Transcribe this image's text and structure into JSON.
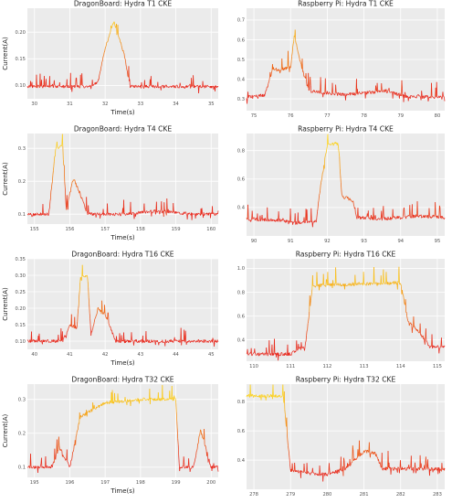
{
  "chart_data": [
    {
      "type": "line",
      "title": "DragonBoard: Hydra T1 CKE",
      "xlabel": "Time(s)",
      "ylabel": "Current(A)",
      "xlim": [
        29.8,
        35.2
      ],
      "ylim": [
        0.075,
        0.245
      ],
      "xticks": [
        30,
        31,
        32,
        33,
        34,
        35
      ],
      "yticks": [
        0.1,
        0.15,
        0.2
      ],
      "grid": true,
      "legend": "none",
      "series": [
        {
          "x": [
            29.8,
            31.6,
            31.8,
            32.0,
            32.25,
            32.4,
            32.55,
            32.7,
            35.2
          ],
          "y": [
            0.098,
            0.098,
            0.107,
            0.17,
            0.22,
            0.19,
            0.155,
            0.098,
            0.098
          ]
        }
      ]
    },
    {
      "type": "line",
      "title": "Raspberry Pi: Hydra T1 CKE",
      "xlabel": "",
      "ylabel": "",
      "xlim": [
        74.8,
        80.2
      ],
      "ylim": [
        0.24,
        0.76
      ],
      "xticks": [
        75,
        76,
        77,
        78,
        79,
        80
      ],
      "yticks": [
        0.3,
        0.4,
        0.5,
        0.6,
        0.7
      ],
      "grid": true,
      "legend": "none",
      "series": [
        {
          "x": [
            74.8,
            75.3,
            75.5,
            75.7,
            76.0,
            76.1,
            76.3,
            76.5,
            77.5,
            78.0,
            78.6,
            79.2,
            80.2
          ],
          "y": [
            0.31,
            0.32,
            0.44,
            0.45,
            0.46,
            0.62,
            0.46,
            0.34,
            0.32,
            0.33,
            0.34,
            0.31,
            0.31
          ]
        }
      ]
    },
    {
      "type": "line",
      "title": "DragonBoard: Hydra T4 CKE",
      "xlabel": "Time(s)",
      "ylabel": "Current(A)",
      "xlim": [
        154.8,
        160.2
      ],
      "ylim": [
        0.07,
        0.345
      ],
      "xticks": [
        155,
        156,
        157,
        158,
        159,
        160
      ],
      "yticks": [
        0.1,
        0.2,
        0.3
      ],
      "grid": true,
      "legend": "none",
      "series": [
        {
          "x": [
            154.8,
            155.4,
            155.6,
            155.8,
            155.9,
            156.1,
            156.3,
            156.5,
            157.5,
            158.5,
            159.5,
            160.2
          ],
          "y": [
            0.1,
            0.1,
            0.3,
            0.31,
            0.11,
            0.21,
            0.16,
            0.1,
            0.1,
            0.11,
            0.1,
            0.1
          ]
        }
      ]
    },
    {
      "type": "line",
      "title": "Raspberry Pi: Hydra T4 CKE",
      "xlabel": "",
      "ylabel": "",
      "xlim": [
        89.8,
        95.2
      ],
      "ylim": [
        0.2,
        0.92
      ],
      "xticks": [
        90,
        91,
        92,
        93,
        94,
        95
      ],
      "yticks": [
        0.4,
        0.6,
        0.8
      ],
      "grid": true,
      "legend": "none",
      "series": [
        {
          "x": [
            89.8,
            90.8,
            91.0,
            91.7,
            91.8,
            92.0,
            92.3,
            92.4,
            92.7,
            92.8,
            93.5,
            94.5,
            95.2
          ],
          "y": [
            0.32,
            0.31,
            0.29,
            0.3,
            0.52,
            0.84,
            0.85,
            0.48,
            0.45,
            0.33,
            0.32,
            0.34,
            0.33
          ]
        }
      ]
    },
    {
      "type": "line",
      "title": "DragonBoard: Hydra T16 CKE",
      "xlabel": "Time(s)",
      "ylabel": "Current(A)",
      "xlim": [
        39.8,
        45.2
      ],
      "ylim": [
        0.075,
        0.35
      ],
      "xticks": [
        40,
        41,
        42,
        43,
        44,
        45
      ],
      "yticks": [
        0.1,
        0.15,
        0.2,
        0.25,
        0.3,
        0.35
      ],
      "grid": true,
      "legend": "none",
      "series": [
        {
          "x": [
            39.8,
            40.8,
            41.0,
            41.2,
            41.3,
            41.5,
            41.6,
            41.8,
            42.0,
            42.3,
            43.0,
            44.0,
            45.2
          ],
          "y": [
            0.1,
            0.1,
            0.15,
            0.14,
            0.29,
            0.3,
            0.12,
            0.2,
            0.18,
            0.1,
            0.1,
            0.1,
            0.1
          ]
        }
      ]
    },
    {
      "type": "line",
      "title": "Raspberry Pi: Hydra T16 CKE",
      "xlabel": "",
      "ylabel": "",
      "xlim": [
        109.8,
        115.2
      ],
      "ylim": [
        0.22,
        1.08
      ],
      "xticks": [
        110,
        111,
        112,
        113,
        114,
        115
      ],
      "yticks": [
        0.4,
        0.6,
        0.8,
        1
      ],
      "grid": true,
      "legend": "none",
      "series": [
        {
          "x": [
            109.8,
            111.0,
            111.4,
            111.6,
            112.0,
            113.0,
            114.0,
            114.2,
            114.5,
            114.8,
            115.2
          ],
          "y": [
            0.28,
            0.28,
            0.35,
            0.85,
            0.86,
            0.87,
            0.88,
            0.55,
            0.47,
            0.34,
            0.34
          ]
        }
      ]
    },
    {
      "type": "line",
      "title": "DragonBoard: Hydra T32 CKE",
      "xlabel": "Time(s)",
      "ylabel": "Current(A)",
      "xlim": [
        194.8,
        200.2
      ],
      "ylim": [
        0.07,
        0.345
      ],
      "xticks": [
        195,
        196,
        197,
        198,
        199,
        200
      ],
      "yticks": [
        0.1,
        0.2,
        0.3
      ],
      "grid": true,
      "legend": "none",
      "series": [
        {
          "x": [
            194.8,
            195.5,
            195.7,
            196.0,
            196.3,
            196.5,
            197.0,
            198.0,
            199.0,
            199.1,
            199.5,
            199.7,
            200.0,
            200.2
          ],
          "y": [
            0.1,
            0.1,
            0.16,
            0.1,
            0.25,
            0.26,
            0.29,
            0.3,
            0.3,
            0.1,
            0.1,
            0.21,
            0.1,
            0.1
          ]
        }
      ]
    },
    {
      "type": "line",
      "title": "Raspberry Pi: Hydra T32 CKE",
      "xlabel": "",
      "ylabel": "",
      "xlim": [
        277.8,
        283.2
      ],
      "ylim": [
        0.2,
        0.92
      ],
      "xticks": [
        278,
        279,
        280,
        281,
        282,
        283
      ],
      "yticks": [
        0.4,
        0.6,
        0.8
      ],
      "grid": true,
      "legend": "none",
      "series": [
        {
          "x": [
            277.8,
            278.8,
            279.0,
            279.5,
            280.0,
            280.5,
            281.0,
            281.3,
            281.5,
            282.0,
            283.2
          ],
          "y": [
            0.84,
            0.84,
            0.33,
            0.31,
            0.3,
            0.34,
            0.46,
            0.45,
            0.34,
            0.34,
            0.34
          ]
        }
      ]
    }
  ]
}
